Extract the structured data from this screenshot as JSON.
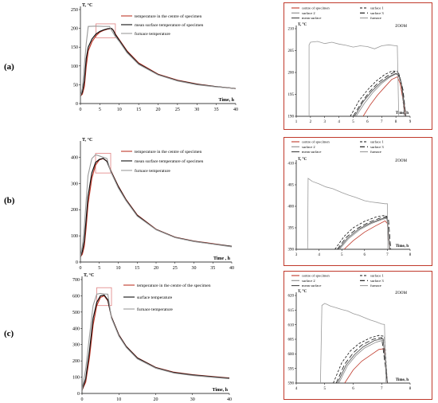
{
  "row_labels": [
    "(a)",
    "(b)",
    "(c)"
  ],
  "colors": {
    "centre": "#c0392b",
    "surface": "#111111",
    "furnace": "#9a9a9a",
    "highlight_box": "#e08080",
    "zoom_frame": "#c0392b"
  },
  "chart_data": [
    {
      "id": "a-main",
      "type": "line",
      "ylabel": "T, °C",
      "xlabel": "Time, h",
      "xlim": [
        0,
        40
      ],
      "ylim": [
        0,
        250
      ],
      "xticks": [
        "0",
        "5",
        "10",
        "15",
        "20",
        "25",
        "30",
        "35",
        "40"
      ],
      "yticks": [
        "0",
        "50",
        "100",
        "150",
        "200",
        "250"
      ],
      "series": [
        {
          "name": "temperature in the centre of specimen",
          "key": "centre",
          "x": [
            0,
            0.5,
            1,
            1.5,
            2,
            3,
            4,
            5,
            6,
            7,
            8,
            8.5,
            9,
            10,
            12,
            15,
            20,
            25,
            30,
            35,
            40
          ],
          "y": [
            20,
            25,
            45,
            100,
            140,
            165,
            180,
            190,
            195,
            198,
            200,
            195,
            185,
            170,
            140,
            108,
            78,
            62,
            52,
            45,
            40
          ]
        },
        {
          "name": "mean surface temperature of specimen",
          "key": "surface",
          "x": [
            0,
            0.5,
            1,
            1.5,
            2,
            3,
            4,
            5,
            6,
            7,
            8,
            8.5,
            9,
            10,
            12,
            15,
            20,
            25,
            30,
            35,
            40
          ],
          "y": [
            20,
            30,
            60,
            120,
            150,
            172,
            185,
            192,
            196,
            199,
            200,
            194,
            183,
            168,
            138,
            106,
            77,
            61,
            51,
            45,
            40
          ]
        },
        {
          "name": "furnace temperature",
          "key": "furnace",
          "x": [
            0,
            0.5,
            1,
            1.5,
            2,
            4,
            6,
            7.5,
            8,
            9,
            10,
            12,
            15,
            20,
            25,
            30,
            35,
            40
          ],
          "y": [
            20,
            40,
            100,
            160,
            205,
            206,
            205,
            205,
            195,
            178,
            165,
            135,
            104,
            76,
            60,
            50,
            44,
            40
          ]
        }
      ]
    },
    {
      "id": "a-zoom",
      "type": "line",
      "ylabel": "T, °C",
      "xlabel": "Time, h",
      "annotation": "ZOOM",
      "xlim": [
        1,
        9
      ],
      "ylim": [
        190,
        210
      ],
      "xticks": [
        "1",
        "2",
        "3",
        "4",
        "5",
        "6",
        "7",
        "8",
        "9"
      ],
      "yticks": [
        "190",
        "195",
        "200",
        "205",
        "210"
      ],
      "series": [
        {
          "name": "centre of specimen",
          "key": "centre",
          "dash": "",
          "x": [
            5.7,
            6.2,
            6.7,
            7.2,
            7.7,
            8.1,
            8.3,
            8.7
          ],
          "y": [
            190,
            192.6,
            194.8,
            196.6,
            198.4,
            199,
            197.5,
            190
          ]
        },
        {
          "name": "surface 1",
          "key": "s1",
          "dash": "3,2",
          "x": [
            4.8,
            5.4,
            6,
            6.6,
            7.2,
            7.7,
            8.1,
            8.4,
            8.6
          ],
          "y": [
            190,
            193.5,
            196,
            198,
            199.5,
            200.3,
            200.3,
            197,
            190
          ]
        },
        {
          "name": "surface 2",
          "key": "s2",
          "dash": "",
          "x": [
            5.2,
            5.8,
            6.4,
            7,
            7.6,
            8.1,
            8.4,
            8.6
          ],
          "y": [
            190,
            193,
            195.5,
            197.5,
            199,
            199.8,
            197.5,
            190
          ]
        },
        {
          "name": "surface  3",
          "key": "s3",
          "dash": "6,3",
          "x": [
            5,
            5.6,
            6.2,
            6.8,
            7.4,
            7.9,
            8.2,
            8.5,
            8.7
          ],
          "y": [
            190,
            193.2,
            195.8,
            197.8,
            199.2,
            200.1,
            199.8,
            196,
            190
          ]
        },
        {
          "name": "mean surface",
          "key": "mean",
          "dash": "",
          "x": [
            5.1,
            5.7,
            6.3,
            6.9,
            7.5,
            8,
            8.3,
            8.5,
            8.7
          ],
          "y": [
            190,
            193.3,
            195.7,
            197.6,
            199,
            199.8,
            198.8,
            195,
            190
          ]
        },
        {
          "name": "furnace",
          "key": "furnace",
          "dash": "",
          "x": [
            1.9,
            1.9,
            2,
            2.5,
            3,
            3.5,
            4,
            4.5,
            5,
            5.5,
            6,
            6.5,
            7,
            7.5,
            8,
            8.1,
            8.2
          ],
          "y": [
            190,
            206.3,
            206.9,
            207.1,
            206.6,
            206.9,
            206.5,
            206.2,
            205.8,
            206.1,
            205.9,
            205.4,
            206.1,
            206.3,
            206.1,
            206.1,
            190
          ]
        }
      ]
    },
    {
      "id": "b-main",
      "type": "line",
      "ylabel": "T, °C",
      "xlabel": "Time , h",
      "xlim": [
        0,
        40
      ],
      "ylim": [
        0,
        450
      ],
      "xticks": [
        "0",
        "5",
        "10",
        "15",
        "20",
        "25",
        "30",
        "35",
        "40"
      ],
      "yticks": [
        "0",
        "100",
        "200",
        "300",
        "400"
      ],
      "series": [
        {
          "name": "temperature in the centre of specimen",
          "key": "centre",
          "x": [
            0,
            0.5,
            1,
            1.5,
            2,
            3,
            4,
            5,
            6,
            7,
            8,
            10,
            12,
            15,
            20,
            25,
            30,
            35,
            40
          ],
          "y": [
            20,
            30,
            60,
            130,
            220,
            320,
            370,
            390,
            395,
            385,
            350,
            290,
            240,
            180,
            125,
            95,
            80,
            70,
            60
          ]
        },
        {
          "name": "mean surface temperature of specimen",
          "key": "surface",
          "x": [
            0,
            0.5,
            1,
            1.5,
            2,
            3,
            4,
            5,
            6,
            7,
            8,
            10,
            12,
            15,
            20,
            25,
            30,
            35,
            40
          ],
          "y": [
            20,
            40,
            80,
            160,
            250,
            340,
            380,
            392,
            396,
            384,
            348,
            288,
            238,
            178,
            124,
            94,
            79,
            69,
            60
          ]
        },
        {
          "name": "furnace temperature",
          "key": "furnace",
          "x": [
            0,
            0.5,
            1,
            1.5,
            2,
            3,
            4,
            5,
            6,
            7,
            8,
            10,
            12,
            15,
            20,
            25,
            30,
            35,
            40
          ],
          "y": [
            20,
            60,
            130,
            230,
            330,
            395,
            410,
            405,
            400,
            395,
            345,
            283,
            235,
            175,
            123,
            93,
            78,
            68,
            58
          ]
        }
      ]
    },
    {
      "id": "b-zoom",
      "type": "line",
      "ylabel": "T, °C",
      "xlabel": "Time, h",
      "annotation": "ZOOM",
      "xlim": [
        3,
        8
      ],
      "ylim": [
        390,
        410
      ],
      "xticks": [
        "3",
        "4",
        "5",
        "6",
        "7",
        "8"
      ],
      "yticks": [
        "390",
        "395",
        "400",
        "405",
        "410"
      ],
      "series": [
        {
          "name": "centre of specimen",
          "key": "centre",
          "dash": "",
          "x": [
            5.1,
            5.5,
            6,
            6.5,
            6.9,
            7,
            7.1
          ],
          "y": [
            390,
            392,
            394,
            395.5,
            396.6,
            396,
            390
          ]
        },
        {
          "name": "surface 1",
          "key": "s1",
          "dash": "3,2",
          "x": [
            4.7,
            5.1,
            5.5,
            6,
            6.5,
            6.9,
            7,
            7.1
          ],
          "y": [
            390,
            393,
            395,
            396.5,
            397.5,
            397.9,
            397.5,
            390
          ]
        },
        {
          "name": "surface 2",
          "key": "s2",
          "dash": "",
          "x": [
            4.9,
            5.3,
            5.8,
            6.3,
            6.8,
            7,
            7.1
          ],
          "y": [
            390,
            392.5,
            394.6,
            396,
            397,
            397.2,
            390
          ]
        },
        {
          "name": "surface 3",
          "key": "s3",
          "dash": "6,3",
          "x": [
            4.8,
            5.2,
            5.7,
            6.2,
            6.7,
            6.95,
            7.05,
            7.15
          ],
          "y": [
            390,
            392.8,
            394.9,
            396.3,
            397.3,
            397.6,
            397,
            390
          ]
        },
        {
          "name": "mean surface",
          "key": "mean",
          "dash": "",
          "x": [
            4.85,
            5.25,
            5.75,
            6.25,
            6.75,
            6.98,
            7.1
          ],
          "y": [
            390,
            392.6,
            394.7,
            396.1,
            397.1,
            397.4,
            390
          ]
        },
        {
          "name": "furnace",
          "key": "furnace",
          "dash": "",
          "x": [
            3.5,
            3.52,
            3.7,
            4,
            4.3,
            4.6,
            5,
            5.3,
            5.6,
            6,
            6.3,
            6.6,
            6.9,
            7,
            7.02
          ],
          "y": [
            390,
            406.5,
            405.8,
            405.2,
            404.5,
            404.1,
            403.2,
            402.6,
            402.1,
            401.3,
            401,
            400.8,
            400.6,
            400.6,
            390
          ]
        }
      ]
    },
    {
      "id": "c-main",
      "type": "line",
      "ylabel": "T, °C",
      "xlabel": "Time, h",
      "xlim": [
        0,
        40
      ],
      "ylim": [
        0,
        700
      ],
      "xticks": [
        "0",
        "10",
        "20",
        "30",
        "40"
      ],
      "yticks": [
        "0",
        "100",
        "200",
        "300",
        "400",
        "500",
        "600",
        "700"
      ],
      "series": [
        {
          "name": "temperature in the centre of the specimen",
          "key": "centre",
          "x": [
            0,
            1,
            2,
            3,
            4,
            5,
            6,
            7,
            8,
            10,
            12,
            15,
            20,
            25,
            30,
            35,
            40
          ],
          "y": [
            20,
            70,
            220,
            420,
            540,
            590,
            600,
            570,
            470,
            360,
            290,
            220,
            160,
            130,
            115,
            105,
            95
          ]
        },
        {
          "name": "surface temperature",
          "key": "surface",
          "x": [
            0,
            1,
            2,
            3,
            4,
            5,
            6,
            7,
            8,
            10,
            12,
            15,
            20,
            25,
            30,
            35,
            40
          ],
          "y": [
            20,
            90,
            260,
            460,
            560,
            600,
            605,
            575,
            468,
            358,
            288,
            218,
            158,
            128,
            113,
            103,
            93
          ]
        },
        {
          "name": "furnace temperature",
          "key": "furnace",
          "x": [
            0,
            1,
            2,
            3,
            4,
            5,
            6,
            7,
            8,
            10,
            12,
            15,
            20,
            25,
            30,
            35,
            40
          ],
          "y": [
            20,
            150,
            350,
            540,
            610,
            615,
            612,
            610,
            462,
            352,
            283,
            213,
            155,
            125,
            110,
            100,
            90
          ]
        }
      ]
    },
    {
      "id": "c-zoom",
      "type": "line",
      "ylabel": "T, °C",
      "xlabel": "Time, h",
      "annotation": "ZOOM",
      "xlim": [
        4,
        8
      ],
      "ylim": [
        590,
        620
      ],
      "xticks": [
        "4",
        "5",
        "6",
        "7",
        "8"
      ],
      "yticks": [
        "590",
        "595",
        "600",
        "605",
        "610",
        "615",
        "620"
      ],
      "series": [
        {
          "name": "centre of specimen",
          "key": "centre",
          "dash": "",
          "x": [
            5.7,
            6,
            6.3,
            6.6,
            6.9,
            7.1,
            7.2
          ],
          "y": [
            590,
            594.5,
            597.5,
            599.5,
            601.5,
            601.8,
            590
          ]
        },
        {
          "name": "surface 1",
          "key": "s1",
          "dash": "3,2",
          "x": [
            5.3,
            5.6,
            5.9,
            6.2,
            6.6,
            6.9,
            7.1,
            7.2
          ],
          "y": [
            590,
            597,
            601,
            603.5,
            605.5,
            606.3,
            606,
            590
          ]
        },
        {
          "name": "surface 2",
          "key": "s2",
          "dash": "",
          "x": [
            5.5,
            5.8,
            6.1,
            6.4,
            6.8,
            7.1,
            7.2
          ],
          "y": [
            590,
            596,
            599.5,
            602,
            604,
            604.8,
            590
          ]
        },
        {
          "name": "surface 3",
          "key": "s3",
          "dash": "6,3",
          "x": [
            5.4,
            5.7,
            6,
            6.3,
            6.7,
            7,
            7.2
          ],
          "y": [
            590,
            596.5,
            600.3,
            603,
            605,
            605.6,
            590
          ]
        },
        {
          "name": "mean surface",
          "key": "mean",
          "dash": "",
          "x": [
            5.45,
            5.75,
            6.05,
            6.35,
            6.75,
            7.05,
            7.2
          ],
          "y": [
            590,
            596.2,
            599.8,
            602.4,
            604.6,
            605.2,
            590
          ]
        },
        {
          "name": "furnace",
          "key": "furnace",
          "dash": "",
          "x": [
            4.85,
            4.9,
            5,
            5.2,
            5.4,
            5.6,
            5.8,
            6,
            6.2,
            6.4,
            6.6,
            6.8,
            7,
            7.1,
            7.15
          ],
          "y": [
            590,
            616.6,
            617.3,
            616.4,
            615.8,
            615.2,
            614.7,
            613.8,
            613.2,
            612.4,
            611.6,
            611,
            610.2,
            610.1,
            590
          ]
        }
      ]
    }
  ]
}
